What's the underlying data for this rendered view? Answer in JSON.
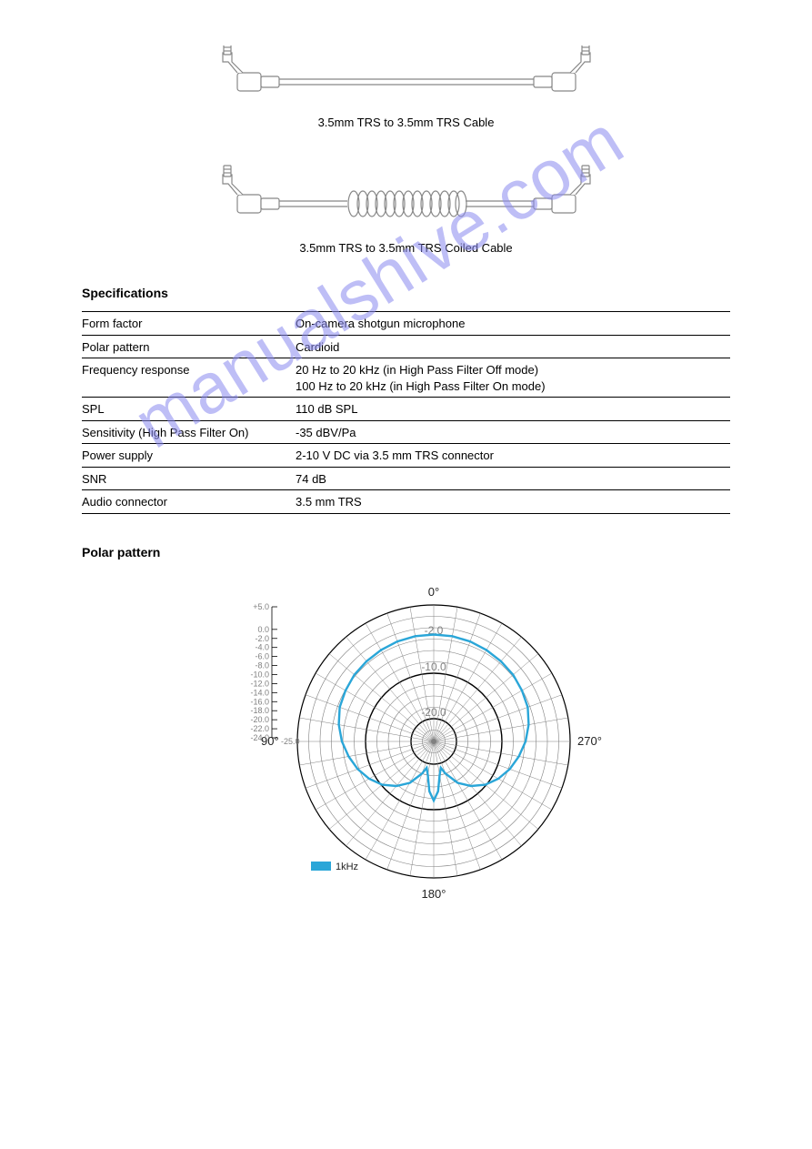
{
  "watermark_text": "manualshive.com",
  "watermark_color": "#8a8af0",
  "cables": [
    {
      "label": "3.5mm TRS to 3.5mm TRS Cable"
    },
    {
      "label": "3.5mm TRS to 3.5mm TRS Coiled Cable"
    }
  ],
  "specs": {
    "title": "Specifications",
    "rows": [
      {
        "key": "Form factor",
        "val": "On-camera shotgun microphone"
      },
      {
        "key": "Polar pattern",
        "val": "Cardioid"
      },
      {
        "key": "Frequency response",
        "val": "20 Hz to 20 kHz (in High Pass Filter Off mode)\n100 Hz to 20 kHz (in High Pass Filter On mode)"
      },
      {
        "key": "SPL",
        "val": "110 dB SPL"
      },
      {
        "key": "Sensitivity (High Pass Filter On)",
        "val": "-35 dBV/Pa"
      },
      {
        "key": "Power supply",
        "val": "2-10 V DC via 3.5 mm TRS connector"
      },
      {
        "key": "SNR",
        "val": "74 dB"
      },
      {
        "key": "Audio connector",
        "val": "3.5 mm TRS"
      }
    ]
  },
  "polar": {
    "title": "Polar pattern",
    "angles": [
      "0°",
      "90°",
      "180°",
      "270°"
    ],
    "ring_labels": [
      "-2.0",
      "-10.0",
      "-20.0"
    ],
    "scale_values": [
      "+5.0",
      "0.0",
      "-2.0",
      "-4.0",
      "-6.0",
      "-8.0",
      "-10.0",
      "-12.0",
      "-14.0",
      "-16.0",
      "-18.0",
      "-20.0",
      "-22.0",
      "-24.0"
    ],
    "scale_tail": "-25.0",
    "legend": "1kHz",
    "curve_color": "#2aa6d8",
    "grid_color": "#808080",
    "label_color": "#808080",
    "bold_rings_dB": [
      -2,
      -10,
      -20
    ],
    "cardioid_points_deg_r": {
      "0": -1.5,
      "10": -1.5,
      "20": -1.6,
      "30": -1.8,
      "40": -2.0,
      "50": -2.2,
      "60": -2.6,
      "70": -3.0,
      "80": -3.8,
      "90": -4.8,
      "100": -6.0,
      "110": -7.2,
      "120": -8.6,
      "130": -10.2,
      "140": -12.2,
      "150": -14.5,
      "160": -17.5,
      "165": -19.0,
      "170": -17.5,
      "175": -14.0,
      "180": -12.0,
      "185": -14.0,
      "190": -17.5,
      "195": -19.0,
      "200": -17.5,
      "210": -14.5,
      "220": -12.2,
      "230": -10.2,
      "240": -8.6,
      "250": -7.2,
      "260": -6.0,
      "270": -4.8,
      "280": -3.8,
      "290": -3.0,
      "300": -2.6,
      "310": -2.2,
      "320": -2.0,
      "330": -1.8,
      "340": -1.6,
      "350": -1.5
    }
  }
}
